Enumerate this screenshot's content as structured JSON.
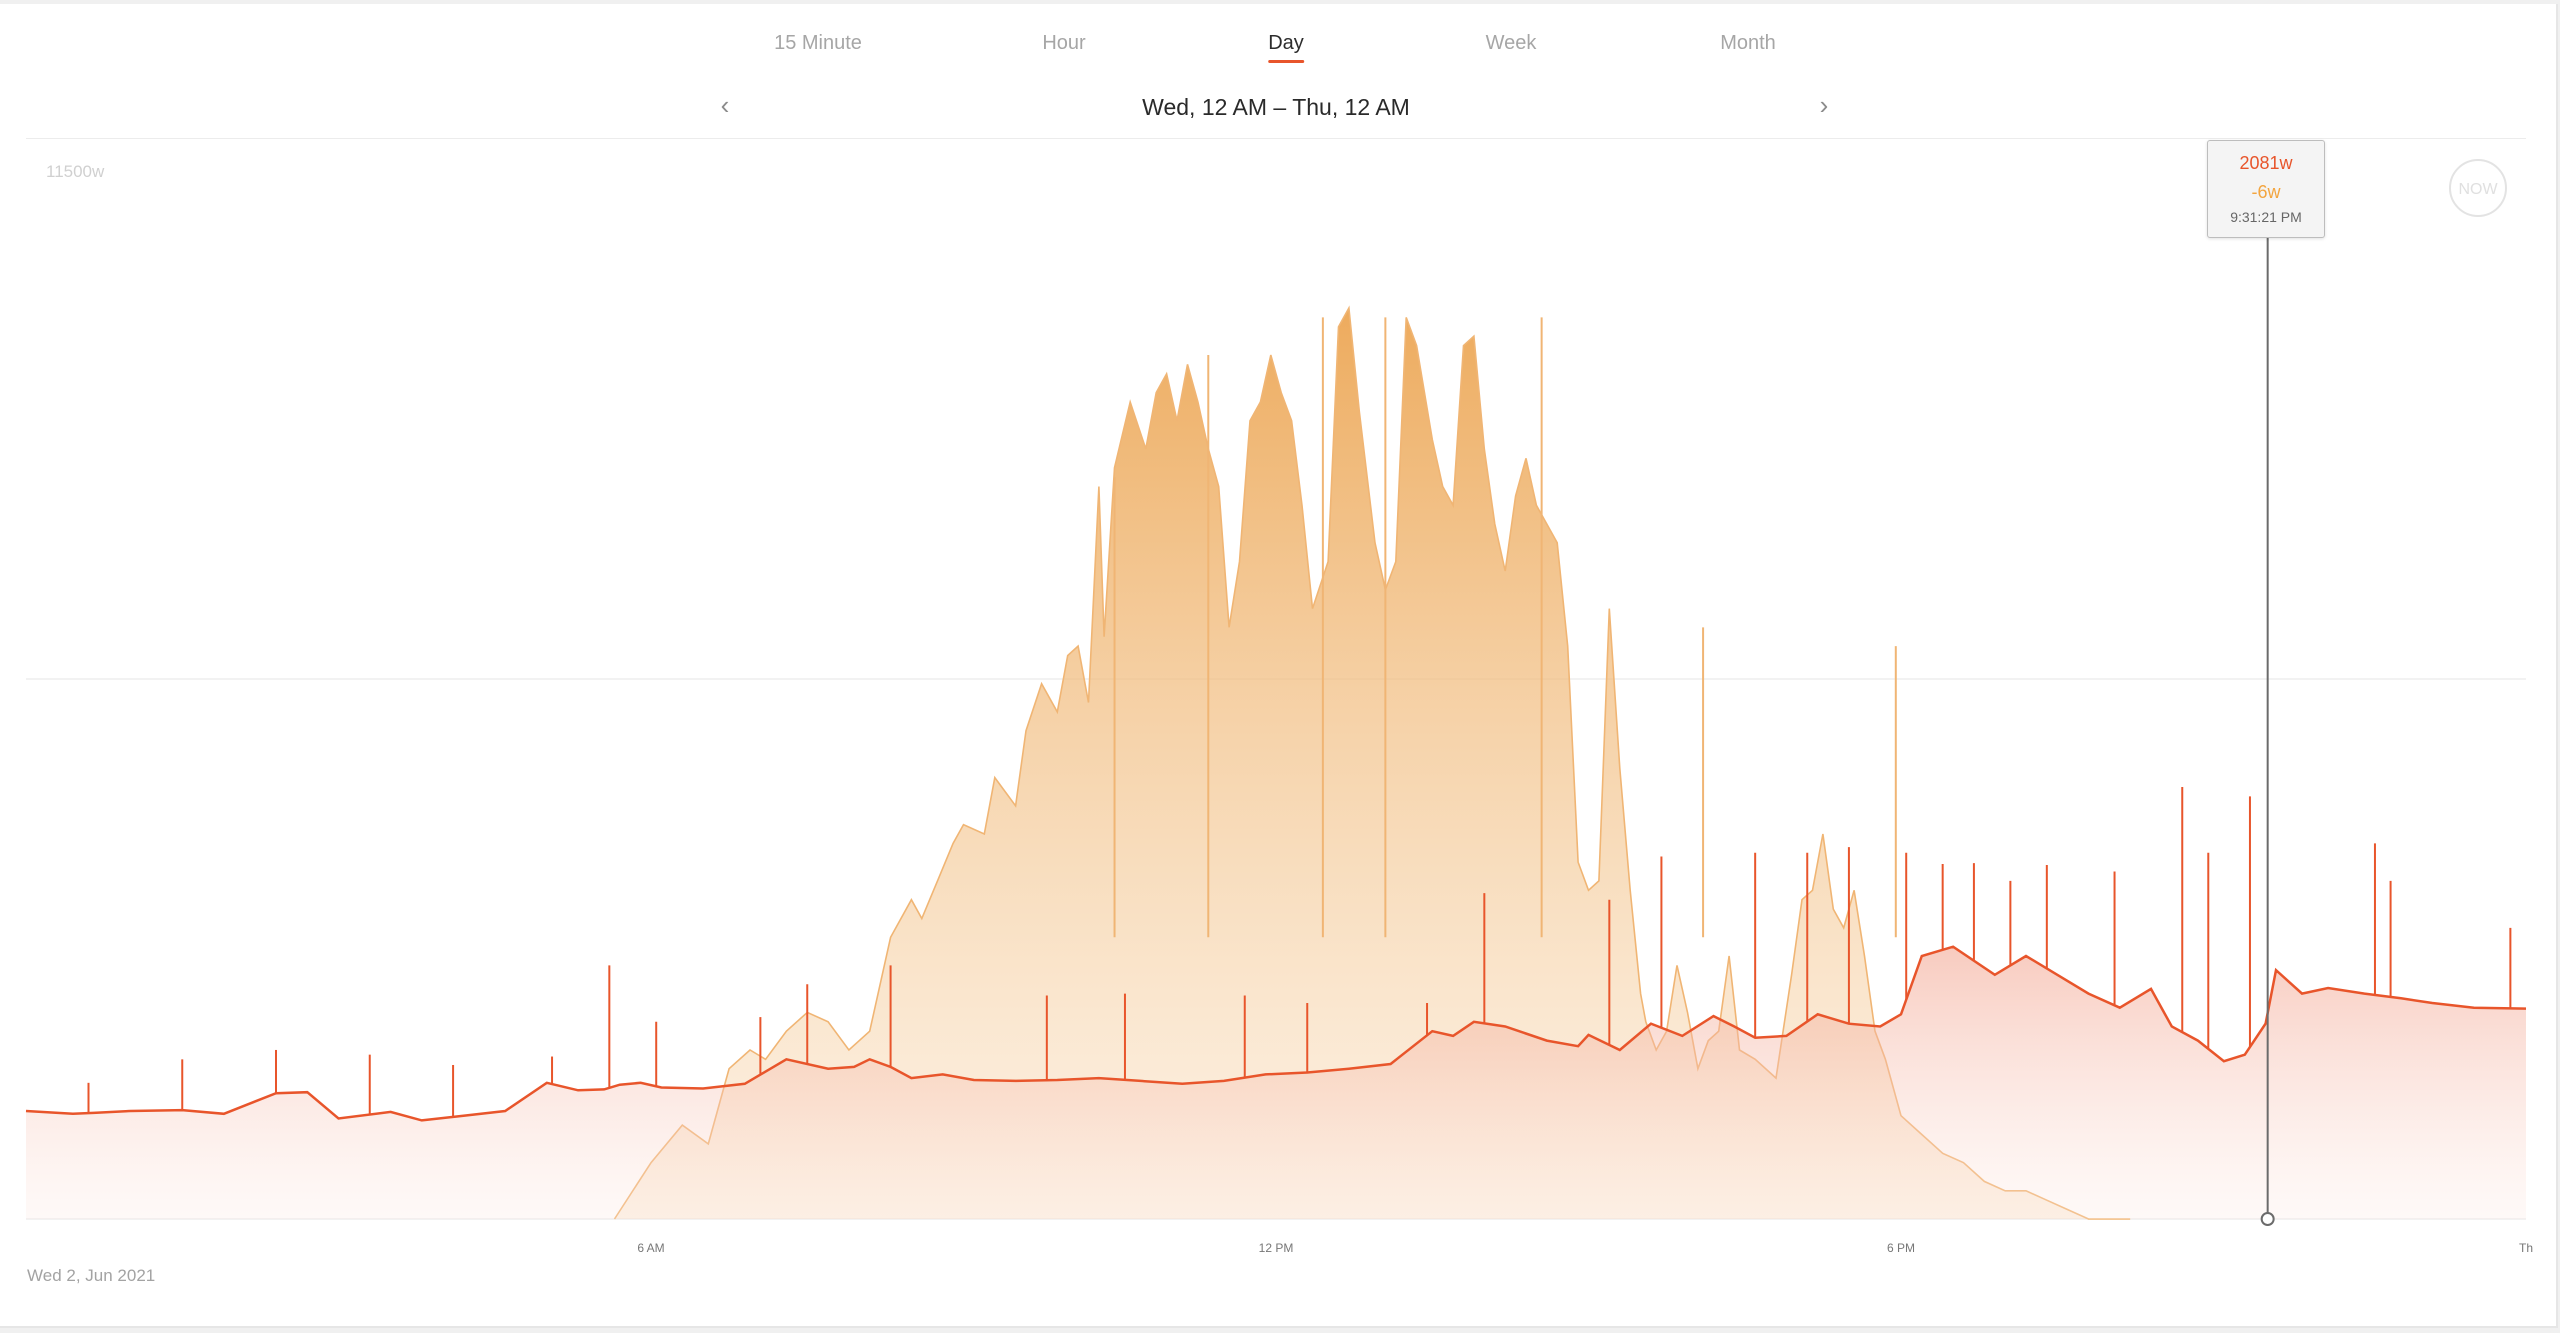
{
  "tabs": [
    {
      "label": "15 Minute",
      "active": false
    },
    {
      "label": "Hour",
      "active": false
    },
    {
      "label": "Day",
      "active": true
    },
    {
      "label": "Week",
      "active": false
    },
    {
      "label": "Month",
      "active": false
    }
  ],
  "nav": {
    "range_label": "Wed, 12 AM – Thu, 12 AM",
    "prev_icon": "chevron-left-icon",
    "next_icon": "chevron-right-icon"
  },
  "now_button": "NOW",
  "date_label": "Wed 2, Jun 2021",
  "tooltip": {
    "consumption": "2081w",
    "solar": "-6w",
    "time": "9:31:21 PM",
    "hour": 21.52
  },
  "colors": {
    "consumption": "#e8552b",
    "solar": "#f0b574",
    "accent": "#e8552b"
  },
  "chart_data": {
    "type": "area",
    "ymax_label": "11500w",
    "x_ticks": [
      "6 AM",
      "12 PM",
      "6 PM",
      "Th"
    ],
    "x_tick_hours": [
      6,
      12,
      18,
      24
    ],
    "xlim": [
      0,
      24
    ],
    "ylim": [
      0,
      11500
    ],
    "gridline_y": [
      5750
    ],
    "series": [
      {
        "key": "solar",
        "x": [
          5.65,
          6.0,
          6.3,
          6.55,
          6.75,
          6.95,
          7.1,
          7.3,
          7.5,
          7.7,
          7.9,
          8.1,
          8.3,
          8.5,
          8.6,
          8.75,
          8.9,
          9.0,
          9.2,
          9.3,
          9.5,
          9.6,
          9.75,
          9.9,
          10.0,
          10.1,
          10.2,
          10.3,
          10.35,
          10.45,
          10.6,
          10.75,
          10.85,
          10.95,
          11.05,
          11.15,
          11.25,
          11.35,
          11.45,
          11.55,
          11.65,
          11.75,
          11.85,
          11.95,
          12.05,
          12.15,
          12.25,
          12.35,
          12.5,
          12.6,
          12.7,
          12.8,
          12.95,
          13.05,
          13.15,
          13.25,
          13.35,
          13.5,
          13.6,
          13.7,
          13.8,
          13.9,
          14.0,
          14.1,
          14.2,
          14.3,
          14.4,
          14.5,
          14.6,
          14.7,
          14.8,
          14.9,
          15.0,
          15.1,
          15.2,
          15.3,
          15.4,
          15.5,
          15.55,
          15.65,
          15.75,
          15.85,
          15.95,
          16.05,
          16.15,
          16.25,
          16.35,
          16.45,
          16.6,
          16.8,
          16.95,
          17.05,
          17.15,
          17.25,
          17.35,
          17.45,
          17.55,
          17.65,
          17.75,
          17.85,
          18.0,
          18.2,
          18.4,
          18.6,
          18.8,
          19.0,
          19.2,
          19.4,
          19.6,
          19.8,
          20.0,
          20.2
        ],
        "y": [
          0,
          600,
          1000,
          800,
          1600,
          1800,
          1700,
          2000,
          2200,
          2100,
          1800,
          2000,
          3000,
          3400,
          3200,
          3600,
          4000,
          4200,
          4100,
          4700,
          4400,
          5200,
          5700,
          5400,
          6000,
          6100,
          5500,
          7800,
          6200,
          8000,
          8700,
          8200,
          8800,
          9000,
          8500,
          9100,
          8700,
          8200,
          7800,
          6300,
          7000,
          8500,
          8700,
          9200,
          8800,
          8500,
          7600,
          6500,
          7000,
          9500,
          9700,
          8600,
          7200,
          6700,
          7000,
          9600,
          9300,
          8300,
          7800,
          7600,
          9300,
          9400,
          8200,
          7400,
          6900,
          7700,
          8100,
          7600,
          7400,
          7200,
          6100,
          3800,
          3500,
          3600,
          6500,
          4800,
          3500,
          2400,
          2100,
          1800,
          2000,
          2700,
          2200,
          1600,
          1900,
          2000,
          2800,
          1800,
          1700,
          1500,
          2600,
          3400,
          3500,
          4100,
          3300,
          3100,
          3500,
          2800,
          2000,
          1700,
          1100,
          900,
          700,
          600,
          400,
          300,
          300,
          200,
          100,
          0,
          0,
          0
        ],
        "peaks": [
          {
            "x": 10.45,
            "y": 7900
          },
          {
            "x": 11.35,
            "y": 9200
          },
          {
            "x": 12.45,
            "y": 9600
          },
          {
            "x": 13.05,
            "y": 9600
          },
          {
            "x": 14.55,
            "y": 9600
          },
          {
            "x": 16.1,
            "y": 6300
          },
          {
            "x": 17.95,
            "y": 6100
          }
        ]
      },
      {
        "key": "consumption",
        "x": [
          0,
          0.45,
          0.65,
          1.0,
          1.5,
          1.9,
          2.4,
          2.7,
          3.0,
          3.5,
          3.8,
          4.2,
          4.6,
          5.0,
          5.3,
          5.55,
          5.7,
          5.9,
          6.1,
          6.5,
          6.9,
          7.3,
          7.7,
          7.95,
          8.1,
          8.3,
          8.5,
          8.8,
          9.1,
          9.5,
          9.9,
          10.3,
          10.7,
          11.1,
          11.5,
          11.9,
          12.3,
          12.7,
          13.1,
          13.5,
          13.7,
          13.9,
          14.2,
          14.6,
          14.9,
          15.0,
          15.3,
          15.6,
          15.9,
          16.2,
          16.4,
          16.6,
          16.9,
          17.2,
          17.5,
          17.8,
          18.0,
          18.2,
          18.5,
          18.9,
          19.2,
          19.5,
          19.8,
          20.1,
          20.4,
          20.6,
          20.85,
          21.1,
          21.3,
          21.5,
          21.6,
          21.85,
          22.1,
          22.45,
          22.8,
          23.1,
          23.5,
          24
        ],
        "y": [
          1150,
          1120,
          1130,
          1150,
          1160,
          1120,
          1340,
          1350,
          1070,
          1140,
          1050,
          1100,
          1150,
          1450,
          1370,
          1380,
          1430,
          1450,
          1400,
          1390,
          1440,
          1700,
          1600,
          1620,
          1700,
          1620,
          1500,
          1540,
          1480,
          1470,
          1480,
          1500,
          1470,
          1440,
          1470,
          1540,
          1560,
          1600,
          1650,
          2000,
          1950,
          2100,
          2050,
          1900,
          1840,
          1960,
          1800,
          2080,
          1950,
          2160,
          2050,
          1930,
          1950,
          2180,
          2080,
          2050,
          2180,
          2800,
          2900,
          2600,
          2800,
          2600,
          2400,
          2250,
          2450,
          2050,
          1900,
          1680,
          1750,
          2081,
          2650,
          2400,
          2460,
          2400,
          2350,
          2300,
          2250,
          2240
        ],
        "spikes": [
          {
            "x": 0.6,
            "y": 1450
          },
          {
            "x": 1.5,
            "y": 1700
          },
          {
            "x": 2.4,
            "y": 1800
          },
          {
            "x": 3.3,
            "y": 1750
          },
          {
            "x": 4.1,
            "y": 1640
          },
          {
            "x": 5.05,
            "y": 1730
          },
          {
            "x": 5.6,
            "y": 2700
          },
          {
            "x": 6.05,
            "y": 2100
          },
          {
            "x": 7.05,
            "y": 2150
          },
          {
            "x": 7.5,
            "y": 2500
          },
          {
            "x": 8.3,
            "y": 2700
          },
          {
            "x": 9.8,
            "y": 2380
          },
          {
            "x": 10.55,
            "y": 2400
          },
          {
            "x": 11.7,
            "y": 2380
          },
          {
            "x": 12.3,
            "y": 2300
          },
          {
            "x": 13.45,
            "y": 2300
          },
          {
            "x": 14.0,
            "y": 3470
          },
          {
            "x": 15.2,
            "y": 3400
          },
          {
            "x": 15.7,
            "y": 3860
          },
          {
            "x": 16.6,
            "y": 3900
          },
          {
            "x": 17.1,
            "y": 3900
          },
          {
            "x": 17.5,
            "y": 3960
          },
          {
            "x": 18.05,
            "y": 3900
          },
          {
            "x": 18.4,
            "y": 3780
          },
          {
            "x": 18.7,
            "y": 3790
          },
          {
            "x": 19.05,
            "y": 3600
          },
          {
            "x": 19.4,
            "y": 3770
          },
          {
            "x": 20.05,
            "y": 3700
          },
          {
            "x": 20.7,
            "y": 4600
          },
          {
            "x": 20.95,
            "y": 3900
          },
          {
            "x": 21.35,
            "y": 4500
          },
          {
            "x": 22.55,
            "y": 4000
          },
          {
            "x": 22.7,
            "y": 3600
          },
          {
            "x": 23.85,
            "y": 3100
          }
        ]
      }
    ]
  }
}
